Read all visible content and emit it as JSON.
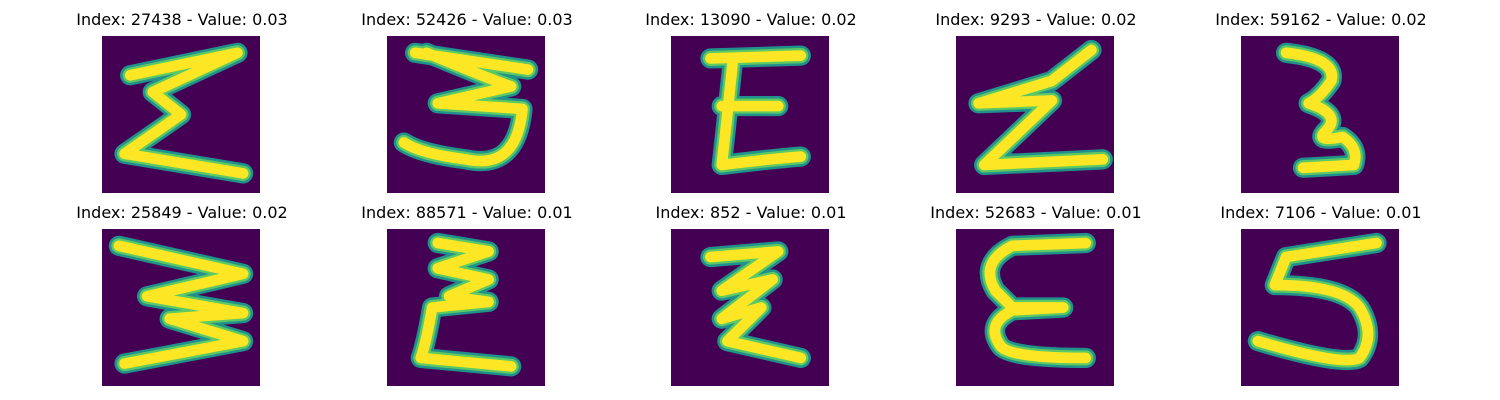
{
  "colors": {
    "background": "#440154",
    "edge": "#21918c",
    "mid": "#5ec962",
    "core": "#fde725"
  },
  "panels": [
    {
      "title": "Index: 27438 - Value: 0.03",
      "glyph": "sigma-like"
    },
    {
      "title": "Index: 52426 - Value: 0.03",
      "glyph": "3-like"
    },
    {
      "title": "Index: 13090 - Value: 0.02",
      "glyph": "E-like"
    },
    {
      "title": "Index: 9293 - Value: 0.02",
      "glyph": "z-like"
    },
    {
      "title": "Index: 59162 - Value: 0.02",
      "glyph": "3-like"
    },
    {
      "title": "Index: 25849 - Value: 0.02",
      "glyph": "3-like"
    },
    {
      "title": "Index: 88571 - Value: 0.01",
      "glyph": "sigma-like"
    },
    {
      "title": "Index: 852 - Value: 0.01",
      "glyph": "z-like"
    },
    {
      "title": "Index: 52683 - Value: 0.01",
      "glyph": "E-like"
    },
    {
      "title": "Index: 7106 - Value: 0.01",
      "glyph": "5-like"
    }
  ]
}
